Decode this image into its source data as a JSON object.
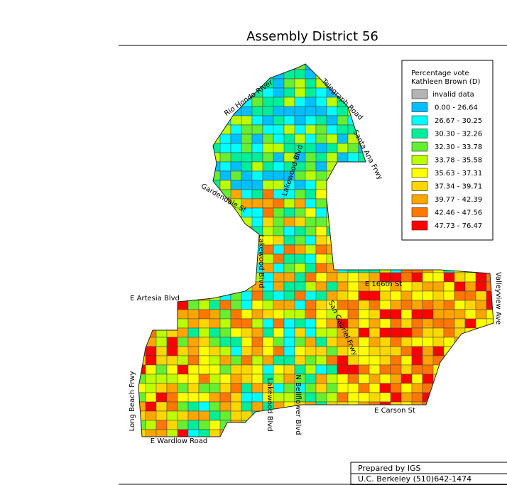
{
  "title": "Assembly District 56",
  "legend": {
    "title": [
      "Percentage vote",
      "Kathleen Brown (D)"
    ],
    "items": [
      {
        "label": "invalid data",
        "color": "#b4b4b4"
      },
      {
        "label": "0.00 - 26.64",
        "color": "#00bfff"
      },
      {
        "label": "26.67 - 30.25",
        "color": "#00ffff"
      },
      {
        "label": "30.30 - 32.26",
        "color": "#00ee99"
      },
      {
        "label": "32.30 - 33.78",
        "color": "#66ee33"
      },
      {
        "label": "33.78 - 35.58",
        "color": "#bbff00"
      },
      {
        "label": "35.63 - 37.31",
        "color": "#ffff00"
      },
      {
        "label": "37.34 - 39.71",
        "color": "#ffd700"
      },
      {
        "label": "39.77 - 42.39",
        "color": "#ffa500"
      },
      {
        "label": "42.46 - 47.56",
        "color": "#ff7700"
      },
      {
        "label": "47.73 - 76.47",
        "color": "#ff0000"
      }
    ]
  },
  "streets": [
    "Rio Hondo River",
    "Telegraph Road",
    "Santa Ana Frwy",
    "Lakewood Blvd",
    "Gardendale St",
    "Lakewood Blvd",
    "E 166th St",
    "Valleyview Ave",
    "E Artesia Blvd",
    "San Gabriel Frwy",
    "Long Beach Frwy",
    "Lakewood Blvd",
    "N Bellflower Blvd",
    "E Carson St",
    "E Wardlow Road"
  ],
  "footer": [
    "Prepared by IGS",
    "U.C. Berkeley (510)642-1474"
  ]
}
